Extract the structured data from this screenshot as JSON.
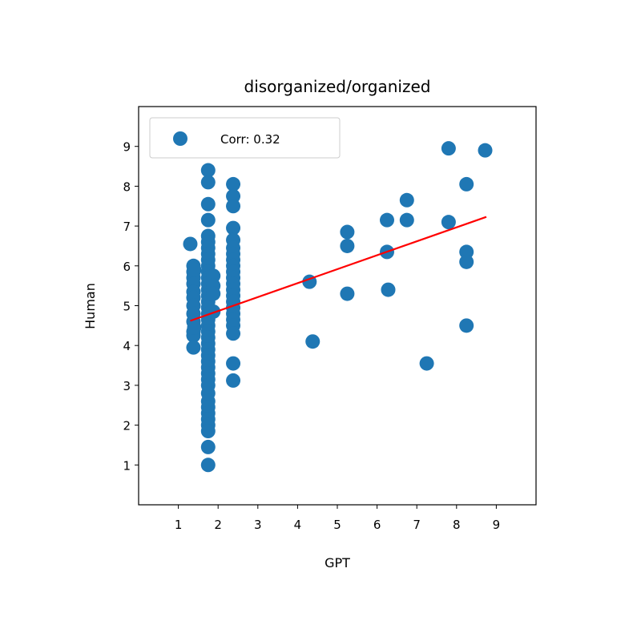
{
  "colors": {
    "points": "#1f77b4",
    "fit_line": "#ff0000",
    "axes": "#000000"
  },
  "chart_data": {
    "type": "scatter",
    "title": "disorganized/organized",
    "xlabel": "GPT",
    "ylabel": "Human",
    "xlim": [
      0.0,
      10.0
    ],
    "ylim": [
      0.0,
      10.0
    ],
    "xticks": [
      "1",
      "2",
      "3",
      "4",
      "5",
      "6",
      "7",
      "8",
      "9"
    ],
    "yticks": [
      "1",
      "2",
      "3",
      "4",
      "5",
      "6",
      "7",
      "8",
      "9"
    ],
    "legend": {
      "label": "Corr: 0.32",
      "position": "upper-left"
    },
    "grid": false,
    "fit_line": {
      "x": [
        1.3,
        8.75
      ],
      "y": [
        4.62,
        7.23
      ]
    },
    "points": [
      [
        1.3,
        6.55
      ],
      [
        1.38,
        6.0
      ],
      [
        1.38,
        5.85
      ],
      [
        1.38,
        5.7
      ],
      [
        1.38,
        5.55
      ],
      [
        1.38,
        5.35
      ],
      [
        1.38,
        5.2
      ],
      [
        1.38,
        5.0
      ],
      [
        1.38,
        4.8
      ],
      [
        1.38,
        4.6
      ],
      [
        1.38,
        4.35
      ],
      [
        1.38,
        4.25
      ],
      [
        1.38,
        3.95
      ],
      [
        1.4,
        5.9
      ],
      [
        1.4,
        4.45
      ],
      [
        1.75,
        8.4
      ],
      [
        1.75,
        8.1
      ],
      [
        1.75,
        7.55
      ],
      [
        1.75,
        7.15
      ],
      [
        1.75,
        6.75
      ],
      [
        1.75,
        6.6
      ],
      [
        1.75,
        6.45
      ],
      [
        1.75,
        6.3
      ],
      [
        1.75,
        6.15
      ],
      [
        1.75,
        6.0
      ],
      [
        1.75,
        5.85
      ],
      [
        1.75,
        5.7
      ],
      [
        1.75,
        5.55
      ],
      [
        1.75,
        5.4
      ],
      [
        1.75,
        5.25
      ],
      [
        1.75,
        5.1
      ],
      [
        1.75,
        4.95
      ],
      [
        1.75,
        4.8
      ],
      [
        1.75,
        4.65
      ],
      [
        1.75,
        4.5
      ],
      [
        1.75,
        4.35
      ],
      [
        1.75,
        4.2
      ],
      [
        1.75,
        4.05
      ],
      [
        1.75,
        3.9
      ],
      [
        1.75,
        3.75
      ],
      [
        1.75,
        3.6
      ],
      [
        1.75,
        3.45
      ],
      [
        1.75,
        3.3
      ],
      [
        1.75,
        3.15
      ],
      [
        1.75,
        3.0
      ],
      [
        1.75,
        2.8
      ],
      [
        1.75,
        2.6
      ],
      [
        1.75,
        2.45
      ],
      [
        1.75,
        2.3
      ],
      [
        1.75,
        2.15
      ],
      [
        1.75,
        2.0
      ],
      [
        1.75,
        1.85
      ],
      [
        1.75,
        1.45
      ],
      [
        1.75,
        1.0
      ],
      [
        1.88,
        5.75
      ],
      [
        1.88,
        5.5
      ],
      [
        1.88,
        5.3
      ],
      [
        1.88,
        4.85
      ],
      [
        2.38,
        8.05
      ],
      [
        2.38,
        7.75
      ],
      [
        2.38,
        7.5
      ],
      [
        2.38,
        6.95
      ],
      [
        2.38,
        6.65
      ],
      [
        2.38,
        6.45
      ],
      [
        2.38,
        6.3
      ],
      [
        2.38,
        6.15
      ],
      [
        2.38,
        6.0
      ],
      [
        2.38,
        5.85
      ],
      [
        2.38,
        5.7
      ],
      [
        2.38,
        5.55
      ],
      [
        2.38,
        5.4
      ],
      [
        2.38,
        5.25
      ],
      [
        2.38,
        5.1
      ],
      [
        2.38,
        4.95
      ],
      [
        2.38,
        4.8
      ],
      [
        2.38,
        4.65
      ],
      [
        2.38,
        4.5
      ],
      [
        2.38,
        4.3
      ],
      [
        2.38,
        3.55
      ],
      [
        2.38,
        3.12
      ],
      [
        4.3,
        5.6
      ],
      [
        4.38,
        4.1
      ],
      [
        5.25,
        6.85
      ],
      [
        5.25,
        6.5
      ],
      [
        5.25,
        5.3
      ],
      [
        6.25,
        7.15
      ],
      [
        6.25,
        6.35
      ],
      [
        6.28,
        5.4
      ],
      [
        6.75,
        7.65
      ],
      [
        6.75,
        7.15
      ],
      [
        7.25,
        3.55
      ],
      [
        7.8,
        8.95
      ],
      [
        7.8,
        7.1
      ],
      [
        8.25,
        8.05
      ],
      [
        8.25,
        6.35
      ],
      [
        8.25,
        6.1
      ],
      [
        8.25,
        4.5
      ],
      [
        8.72,
        8.9
      ]
    ]
  }
}
